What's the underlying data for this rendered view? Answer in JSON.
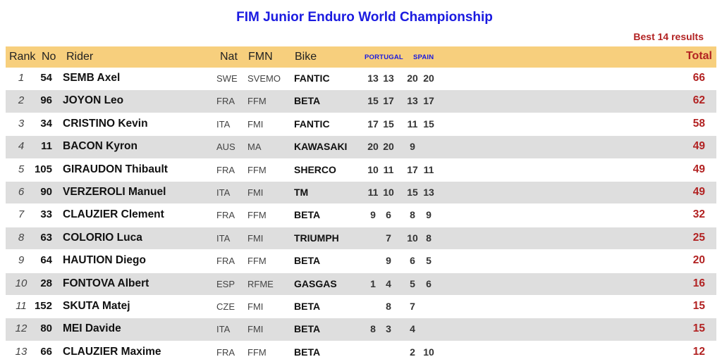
{
  "title": "FIM Junior Enduro World Championship",
  "subtitle": "Best 14 results",
  "colors": {
    "title": "#1a1ae0",
    "header_bg": "#f7cf7d",
    "total": "#b22222",
    "stripe": "#dedede"
  },
  "headers": {
    "rank": "Rank",
    "no": "No",
    "rider": "Rider",
    "nat": "Nat",
    "fmn": "FMN",
    "bike": "Bike",
    "event1": "PORTUGAL",
    "event2": "SPAIN",
    "total": "Total"
  },
  "rows": [
    {
      "rank": "1",
      "no": "54",
      "rider": "SEMB Axel",
      "nat": "SWE",
      "fmn": "SVEMO",
      "bike": "FANTIC",
      "p1": "13",
      "p2": "13",
      "s1": "20",
      "s2": "20",
      "total": "66"
    },
    {
      "rank": "2",
      "no": "96",
      "rider": "JOYON Leo",
      "nat": "FRA",
      "fmn": "FFM",
      "bike": "BETA",
      "p1": "15",
      "p2": "17",
      "s1": "13",
      "s2": "17",
      "total": "62"
    },
    {
      "rank": "3",
      "no": "34",
      "rider": "CRISTINO Kevin",
      "nat": "ITA",
      "fmn": "FMI",
      "bike": "FANTIC",
      "p1": "17",
      "p2": "15",
      "s1": "11",
      "s2": "15",
      "total": "58"
    },
    {
      "rank": "4",
      "no": "11",
      "rider": "BACON Kyron",
      "nat": "AUS",
      "fmn": "MA",
      "bike": "KAWASAKI",
      "p1": "20",
      "p2": "20",
      "s1": "9",
      "s2": "",
      "total": "49"
    },
    {
      "rank": "5",
      "no": "105",
      "rider": "GIRAUDON Thibault",
      "nat": "FRA",
      "fmn": "FFM",
      "bike": "SHERCO",
      "p1": "10",
      "p2": "11",
      "s1": "17",
      "s2": "11",
      "total": "49"
    },
    {
      "rank": "6",
      "no": "90",
      "rider": "VERZEROLI Manuel",
      "nat": "ITA",
      "fmn": "FMI",
      "bike": "TM",
      "p1": "11",
      "p2": "10",
      "s1": "15",
      "s2": "13",
      "total": "49"
    },
    {
      "rank": "7",
      "no": "33",
      "rider": "CLAUZIER Clement",
      "nat": "FRA",
      "fmn": "FFM",
      "bike": "BETA",
      "p1": "9",
      "p2": "6",
      "s1": "8",
      "s2": "9",
      "total": "32"
    },
    {
      "rank": "8",
      "no": "63",
      "rider": "COLORIO Luca",
      "nat": "ITA",
      "fmn": "FMI",
      "bike": "TRIUMPH",
      "p1": "",
      "p2": "7",
      "s1": "10",
      "s2": "8",
      "total": "25"
    },
    {
      "rank": "9",
      "no": "64",
      "rider": "HAUTION Diego",
      "nat": "FRA",
      "fmn": "FFM",
      "bike": "BETA",
      "p1": "",
      "p2": "9",
      "s1": "6",
      "s2": "5",
      "total": "20"
    },
    {
      "rank": "10",
      "no": "28",
      "rider": "FONTOVA Albert",
      "nat": "ESP",
      "fmn": "RFME",
      "bike": "GASGAS",
      "p1": "1",
      "p2": "4",
      "s1": "5",
      "s2": "6",
      "total": "16"
    },
    {
      "rank": "11",
      "no": "152",
      "rider": "SKUTA Matej",
      "nat": "CZE",
      "fmn": "FMI",
      "bike": "BETA",
      "p1": "",
      "p2": "8",
      "s1": "7",
      "s2": "",
      "total": "15"
    },
    {
      "rank": "12",
      "no": "80",
      "rider": "MEI Davide",
      "nat": "ITA",
      "fmn": "FMI",
      "bike": "BETA",
      "p1": "8",
      "p2": "3",
      "s1": "4",
      "s2": "",
      "total": "15"
    },
    {
      "rank": "13",
      "no": "66",
      "rider": "CLAUZIER Maxime",
      "nat": "FRA",
      "fmn": "FFM",
      "bike": "BETA",
      "p1": "",
      "p2": "",
      "s1": "2",
      "s2": "10",
      "total": "12"
    }
  ]
}
